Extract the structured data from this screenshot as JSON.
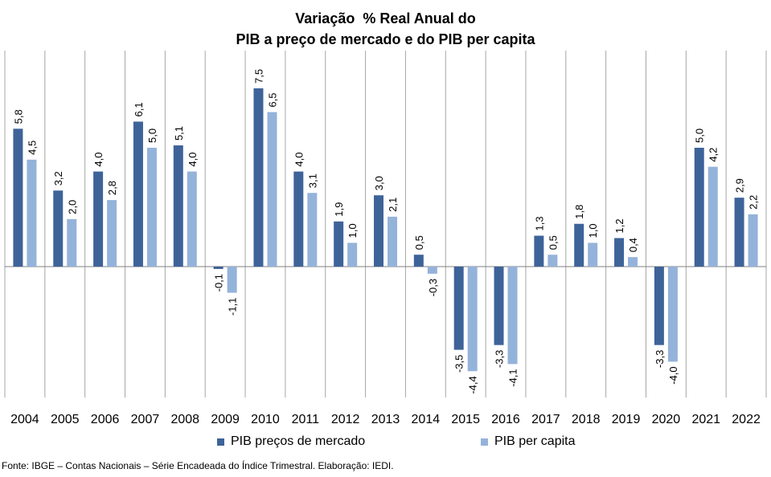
{
  "title_line1": "Variação  % Real Anual do",
  "title_line2": "PIB a preço de mercado e do PIB per capita",
  "source": "Fonte: IBGE – Contas Nacionais – Série Encadeada do Índice Trimestral. Elaboração: IEDI.",
  "colors": {
    "series1": "#3E6399",
    "series2": "#94B3DA",
    "grid": "#A6A6A6",
    "axis": "#808080"
  },
  "chart_data": {
    "type": "bar",
    "title": "Variação  % Real Anual do PIB a preço de mercado e do PIB per capita",
    "categories": [
      "2004",
      "2005",
      "2006",
      "2007",
      "2008",
      "2009",
      "2010",
      "2011",
      "2012",
      "2013",
      "2014",
      "2015",
      "2016",
      "2017",
      "2018",
      "2019",
      "2020",
      "2021",
      "2022"
    ],
    "series": [
      {
        "name": "PIB preços de mercado",
        "values": [
          5.8,
          3.2,
          4.0,
          6.1,
          5.1,
          -0.1,
          7.5,
          4.0,
          1.9,
          3.0,
          0.5,
          -3.5,
          -3.3,
          1.3,
          1.8,
          1.2,
          -3.3,
          5.0,
          2.9
        ],
        "labels": [
          "5,8",
          "3,2",
          "4,0",
          "6,1",
          "5,1",
          "-0,1",
          "7,5",
          "4,0",
          "1,9",
          "3,0",
          "0,5",
          "-3,5",
          "-3,3",
          "1,3",
          "1,8",
          "1,2",
          "-3,3",
          "5,0",
          "2,9"
        ]
      },
      {
        "name": "PIB per capita",
        "values": [
          4.5,
          2.0,
          2.8,
          5.0,
          4.0,
          -1.1,
          6.5,
          3.1,
          1.0,
          2.1,
          -0.3,
          -4.4,
          -4.1,
          0.5,
          1.0,
          0.4,
          -4.0,
          4.2,
          2.2
        ],
        "labels": [
          "4,5",
          "2,0",
          "2,8",
          "5,0",
          "4,0",
          "-1,1",
          "6,5",
          "3,1",
          "1,0",
          "2,1",
          "-0,3",
          "-4,4",
          "-4,1",
          "0,5",
          "1,0",
          "0,4",
          "-4,0",
          "4,2",
          "2,2"
        ]
      }
    ],
    "legend_position": "bottom",
    "grid": "vertical category separators",
    "xlabel": "",
    "ylabel": ""
  }
}
